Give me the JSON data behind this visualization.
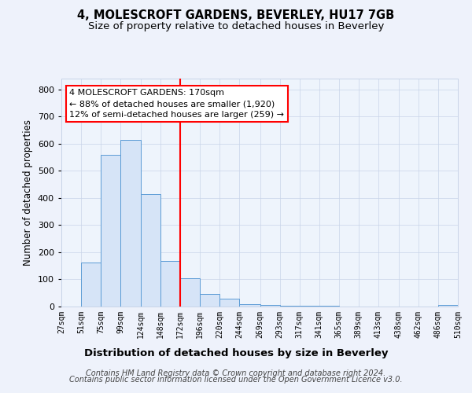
{
  "title": "4, MOLESCROFT GARDENS, BEVERLEY, HU17 7GB",
  "subtitle": "Size of property relative to detached houses in Beverley",
  "xlabel": "Distribution of detached houses by size in Beverley",
  "ylabel": "Number of detached properties",
  "bin_edges": [
    27,
    51,
    75,
    99,
    124,
    148,
    172,
    196,
    220,
    244,
    269,
    293,
    317,
    341,
    365,
    389,
    413,
    438,
    462,
    486,
    510
  ],
  "bar_heights": [
    0,
    163,
    560,
    615,
    413,
    168,
    103,
    47,
    30,
    8,
    5,
    2,
    2,
    2,
    1,
    1,
    1,
    0,
    0,
    5
  ],
  "bar_facecolor": "#d6e4f7",
  "bar_edgecolor": "#5b9bd5",
  "red_line_x": 172,
  "ylim": [
    0,
    840
  ],
  "yticks": [
    0,
    100,
    200,
    300,
    400,
    500,
    600,
    700,
    800
  ],
  "annotation_text_line1": "4 MOLESCROFT GARDENS: 170sqm",
  "annotation_text_line2": "← 88% of detached houses are smaller (1,920)",
  "annotation_text_line3": "12% of semi-detached houses are larger (259) →",
  "footer_line1": "Contains HM Land Registry data © Crown copyright and database right 2024.",
  "footer_line2": "Contains public sector information licensed under the Open Government Licence v3.0.",
  "bg_color": "#eef2fb",
  "plot_bg_color": "#eef4fc",
  "grid_color": "#c8d4e8",
  "title_fontsize": 10.5,
  "subtitle_fontsize": 9.5,
  "xlabel_fontsize": 9.5,
  "ylabel_fontsize": 8.5,
  "tick_fontsize": 7,
  "footer_fontsize": 7,
  "ann_fontsize": 8
}
